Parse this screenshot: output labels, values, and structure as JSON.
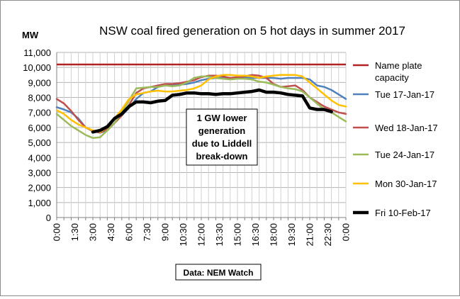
{
  "chart_data": {
    "type": "line",
    "title": "NSW coal fired generation on 5 hot days in summer 2017",
    "ylabel": "MW",
    "xlabel": "",
    "ylim": [
      0,
      11000
    ],
    "yticks": [
      "0",
      "1,000",
      "2,000",
      "3,000",
      "4,000",
      "5,000",
      "6,000",
      "7,000",
      "8,000",
      "9,000",
      "10,000",
      "11,000"
    ],
    "xticks": [
      "0:00",
      "1:30",
      "3:00",
      "4:30",
      "6:00",
      "7:30",
      "9:00",
      "10:30",
      "12:00",
      "13:30",
      "15:00",
      "16:30",
      "18:00",
      "19:30",
      "21:00",
      "22:30",
      "0:00"
    ],
    "grid": true,
    "legend_position": "right",
    "annotation": [
      "1 GW lower",
      "generation",
      "due to Liddell",
      "break-down"
    ],
    "source": "Data: NEM Watch",
    "nameplate": {
      "name_lines": [
        "Name plate",
        "capacity"
      ],
      "color": "#b22222",
      "value": 10200
    },
    "series": [
      {
        "name": "Tue 17-Jan-17",
        "color": "#4f81bd",
        "points": [
          [
            0,
            7350
          ],
          [
            1,
            7200
          ],
          [
            2,
            7000
          ],
          [
            3,
            6600
          ],
          [
            4,
            6000
          ],
          [
            5,
            5750
          ],
          [
            6,
            5650
          ],
          [
            7,
            5800
          ],
          [
            8,
            6300
          ],
          [
            9,
            6800
          ],
          [
            10,
            7300
          ],
          [
            11,
            7900
          ],
          [
            12,
            8300
          ],
          [
            13,
            8400
          ],
          [
            14,
            8700
          ],
          [
            15,
            8800
          ],
          [
            16,
            8800
          ],
          [
            17,
            8850
          ],
          [
            18,
            8900
          ],
          [
            19,
            9000
          ],
          [
            20,
            9150
          ],
          [
            21,
            9250
          ],
          [
            22,
            9300
          ],
          [
            23,
            9300
          ],
          [
            24,
            9300
          ],
          [
            25,
            9350
          ],
          [
            26,
            9350
          ],
          [
            27,
            9300
          ],
          [
            28,
            9300
          ],
          [
            29,
            9300
          ],
          [
            30,
            9300
          ],
          [
            31,
            9250
          ],
          [
            32,
            9300
          ],
          [
            33,
            9300
          ],
          [
            34,
            9300
          ],
          [
            35,
            9200
          ],
          [
            36,
            8800
          ],
          [
            37,
            8700
          ],
          [
            38,
            8500
          ],
          [
            39,
            8200
          ],
          [
            40,
            7900
          ]
        ]
      },
      {
        "name": "Wed 18-Jan-17",
        "color": "#c0504d",
        "points": [
          [
            0,
            7900
          ],
          [
            1,
            7600
          ],
          [
            2,
            7100
          ],
          [
            3,
            6500
          ],
          [
            4,
            6000
          ],
          [
            5,
            5750
          ],
          [
            6,
            5650
          ],
          [
            7,
            5900
          ],
          [
            8,
            6300
          ],
          [
            9,
            6800
          ],
          [
            10,
            7500
          ],
          [
            11,
            8300
          ],
          [
            12,
            8600
          ],
          [
            13,
            8700
          ],
          [
            14,
            8800
          ],
          [
            15,
            8900
          ],
          [
            16,
            8900
          ],
          [
            17,
            8950
          ],
          [
            18,
            9050
          ],
          [
            19,
            9150
          ],
          [
            20,
            9350
          ],
          [
            21,
            9450
          ],
          [
            22,
            9450
          ],
          [
            23,
            9400
          ],
          [
            24,
            9300
          ],
          [
            25,
            9350
          ],
          [
            26,
            9400
          ],
          [
            27,
            9500
          ],
          [
            28,
            9450
          ],
          [
            29,
            9300
          ],
          [
            30,
            8900
          ],
          [
            31,
            8700
          ],
          [
            32,
            8750
          ],
          [
            33,
            8800
          ],
          [
            34,
            8500
          ],
          [
            35,
            8000
          ],
          [
            36,
            7700
          ],
          [
            37,
            7400
          ],
          [
            38,
            7200
          ],
          [
            39,
            7000
          ],
          [
            40,
            6900
          ]
        ]
      },
      {
        "name": "Tue 24-Jan-17",
        "color": "#9bbb59",
        "points": [
          [
            0,
            6900
          ],
          [
            1,
            6500
          ],
          [
            2,
            6100
          ],
          [
            3,
            5800
          ],
          [
            4,
            5500
          ],
          [
            5,
            5300
          ],
          [
            6,
            5350
          ],
          [
            7,
            5800
          ],
          [
            8,
            6300
          ],
          [
            9,
            7000
          ],
          [
            10,
            7800
          ],
          [
            11,
            8600
          ],
          [
            12,
            8650
          ],
          [
            13,
            8700
          ],
          [
            14,
            8700
          ],
          [
            15,
            8800
          ],
          [
            16,
            8750
          ],
          [
            17,
            8800
          ],
          [
            18,
            9000
          ],
          [
            19,
            9300
          ],
          [
            20,
            9400
          ],
          [
            21,
            9400
          ],
          [
            22,
            9300
          ],
          [
            23,
            9250
          ],
          [
            24,
            9200
          ],
          [
            25,
            9250
          ],
          [
            26,
            9250
          ],
          [
            27,
            9200
          ],
          [
            28,
            9050
          ],
          [
            29,
            9000
          ],
          [
            30,
            8850
          ],
          [
            31,
            8700
          ],
          [
            32,
            8600
          ],
          [
            33,
            8550
          ],
          [
            34,
            8400
          ],
          [
            35,
            8000
          ],
          [
            36,
            7600
          ],
          [
            37,
            7200
          ],
          [
            38,
            7000
          ],
          [
            39,
            6700
          ],
          [
            40,
            6400
          ]
        ]
      },
      {
        "name": "Mon 30-Jan-17",
        "color": "#ffc000",
        "points": [
          [
            0,
            7150
          ],
          [
            1,
            6900
          ],
          [
            2,
            6500
          ],
          [
            3,
            6200
          ],
          [
            4,
            6000
          ],
          [
            5,
            5800
          ],
          [
            6,
            5700
          ],
          [
            7,
            6000
          ],
          [
            8,
            6600
          ],
          [
            9,
            7200
          ],
          [
            10,
            7900
          ],
          [
            11,
            8200
          ],
          [
            12,
            8300
          ],
          [
            13,
            8400
          ],
          [
            14,
            8450
          ],
          [
            15,
            8400
          ],
          [
            16,
            8400
          ],
          [
            17,
            8450
          ],
          [
            18,
            8500
          ],
          [
            19,
            8600
          ],
          [
            20,
            8800
          ],
          [
            21,
            9200
          ],
          [
            22,
            9400
          ],
          [
            23,
            9500
          ],
          [
            24,
            9500
          ],
          [
            25,
            9450
          ],
          [
            26,
            9450
          ],
          [
            27,
            9400
          ],
          [
            28,
            9300
          ],
          [
            29,
            9400
          ],
          [
            30,
            9450
          ],
          [
            31,
            9500
          ],
          [
            32,
            9500
          ],
          [
            33,
            9500
          ],
          [
            34,
            9400
          ],
          [
            35,
            9000
          ],
          [
            36,
            8600
          ],
          [
            37,
            8200
          ],
          [
            38,
            7800
          ],
          [
            39,
            7500
          ],
          [
            40,
            7400
          ]
        ]
      },
      {
        "name": "Fri 10-Feb-17",
        "color": "#000000",
        "points": [
          [
            5,
            5700
          ],
          [
            6,
            5800
          ],
          [
            7,
            6050
          ],
          [
            8,
            6600
          ],
          [
            9,
            6900
          ],
          [
            10,
            7400
          ],
          [
            11,
            7700
          ],
          [
            12,
            7700
          ],
          [
            13,
            7650
          ],
          [
            14,
            7750
          ],
          [
            15,
            7800
          ],
          [
            16,
            8150
          ],
          [
            17,
            8200
          ],
          [
            18,
            8300
          ],
          [
            19,
            8300
          ],
          [
            20,
            8250
          ],
          [
            21,
            8250
          ],
          [
            22,
            8200
          ],
          [
            23,
            8250
          ],
          [
            24,
            8250
          ],
          [
            25,
            8300
          ],
          [
            26,
            8350
          ],
          [
            27,
            8400
          ],
          [
            28,
            8500
          ],
          [
            29,
            8350
          ],
          [
            30,
            8350
          ],
          [
            31,
            8300
          ],
          [
            32,
            8200
          ],
          [
            33,
            8150
          ],
          [
            34,
            8100
          ],
          [
            35,
            7300
          ],
          [
            36,
            7200
          ],
          [
            37,
            7200
          ],
          [
            38,
            7050
          ]
        ]
      }
    ]
  }
}
